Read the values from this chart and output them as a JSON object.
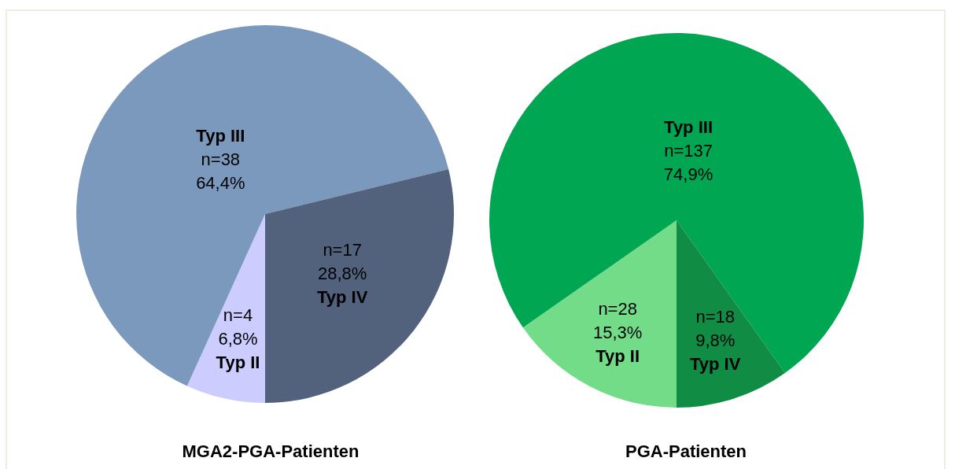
{
  "chart_data": [
    {
      "type": "pie",
      "title": "MGA2-PGA-Patienten",
      "categories": [
        "Typ II",
        "Typ III",
        "Typ IV"
      ],
      "values": [
        4,
        38,
        17
      ],
      "colors": [
        "#ccccff",
        "#7b98bd",
        "#52627c"
      ],
      "value_labels": [
        "n=4\n6,8%",
        "n=38\n64,4%",
        "n=17\n28,8%"
      ]
    },
    {
      "type": "pie",
      "title": "PGA-Patienten",
      "categories": [
        "Typ II",
        "Typ III",
        "Typ IV"
      ],
      "values": [
        28,
        137,
        18
      ],
      "colors": [
        "#73dc88",
        "#00a651",
        "#118c45"
      ],
      "value_labels": [
        "n=28\n15,3%",
        "n=137\n74,9%",
        "n=18\n9,8%"
      ]
    }
  ]
}
